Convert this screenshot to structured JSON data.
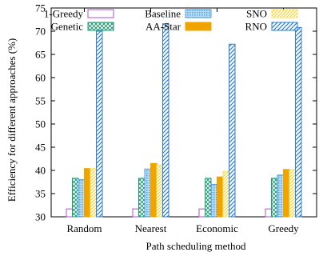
{
  "chart_data": {
    "type": "bar",
    "title": "",
    "xlabel": "Path scheduling method",
    "ylabel": "Efficiency for different approaches (%)",
    "categories": [
      "Random",
      "Nearest",
      "Economic",
      "Greedy"
    ],
    "ylim": [
      30,
      75
    ],
    "yticks": [
      30,
      35,
      40,
      45,
      50,
      55,
      60,
      65,
      70,
      75
    ],
    "grid": false,
    "legend_position": "top",
    "series": [
      {
        "name": "1-Greedy",
        "color": "#b54fd0",
        "pattern": "none",
        "values": [
          31.7,
          31.7,
          31.7,
          31.7
        ]
      },
      {
        "name": "Genetic",
        "color": "#1f9a72",
        "pattern": "crosshatch",
        "values": [
          38.3,
          38.3,
          38.3,
          38.3
        ]
      },
      {
        "name": "Baseline",
        "color": "#4f9fe0",
        "pattern": "dots",
        "values": [
          38.0,
          40.3,
          37.0,
          39.0
        ]
      },
      {
        "name": "AA-Star",
        "color": "#f0a400",
        "pattern": "solid",
        "values": [
          40.4,
          41.5,
          38.6,
          40.2
        ]
      },
      {
        "name": "SNO",
        "color": "#ffe066",
        "pattern": "diagonal",
        "values": [
          40.4,
          41.2,
          39.8,
          40.2
        ]
      },
      {
        "name": "RNO",
        "color": "#2e7fd2",
        "pattern": "diagonal",
        "values": [
          70.0,
          71.6,
          67.2,
          70.8
        ]
      }
    ]
  }
}
